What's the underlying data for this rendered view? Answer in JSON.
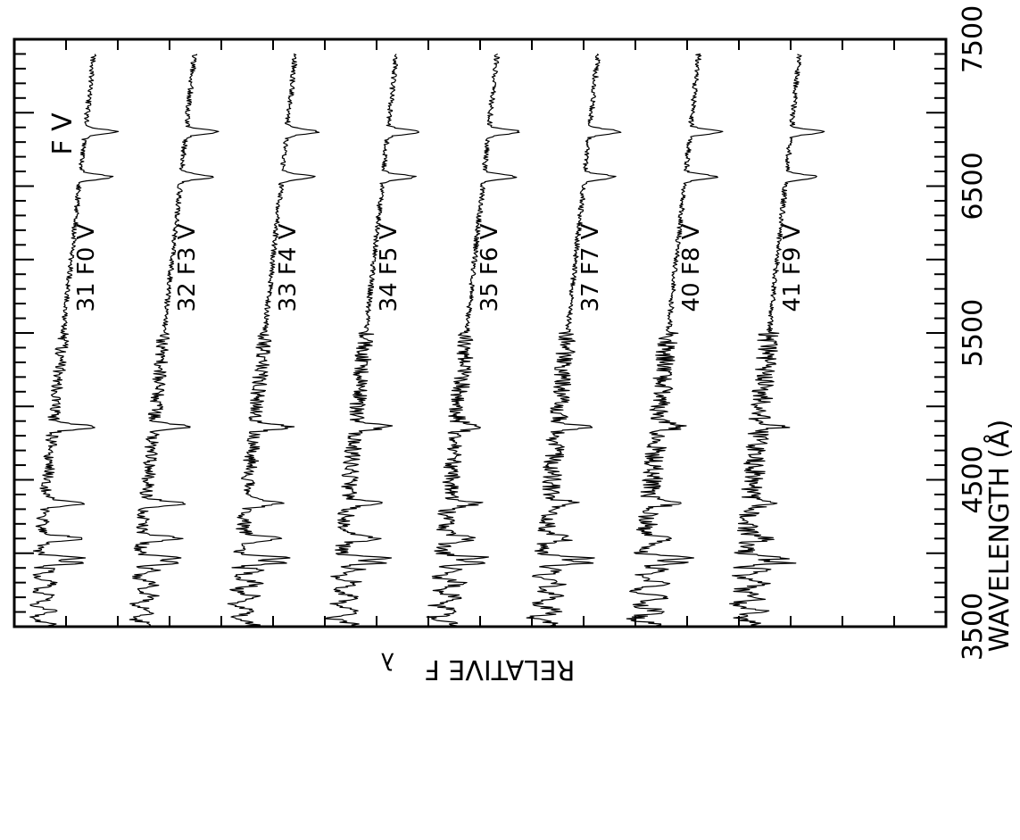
{
  "chart_data": {
    "type": "line",
    "title": "F V",
    "xlabel": "WAVELENGTH (Å)",
    "ylabel": "RELATIVE F",
    "ylabel_subscript": "λ",
    "xlim": [
      3500,
      7500
    ],
    "xticks": [
      3500,
      4500,
      5500,
      6500,
      7500
    ],
    "grid": false,
    "orientation": "rotated-90-clockwise",
    "spectral_lines_angstrom": [
      3934,
      3969,
      4101,
      4340,
      4861,
      6563,
      6870
    ],
    "series": [
      {
        "name": "31 F0 V",
        "offset": 0,
        "slope_continuum": [
          1.0,
          0.7,
          0.42
        ]
      },
      {
        "name": "32 F3 V",
        "offset": 1,
        "slope_continuum": [
          1.0,
          0.7,
          0.45
        ]
      },
      {
        "name": "33 F4 V",
        "offset": 2,
        "slope_continuum": [
          1.0,
          0.72,
          0.46
        ]
      },
      {
        "name": "34 F5 V",
        "offset": 3,
        "slope_continuum": [
          1.0,
          0.74,
          0.48
        ]
      },
      {
        "name": "35 F6 V",
        "offset": 4,
        "slope_continuum": [
          1.0,
          0.76,
          0.5
        ]
      },
      {
        "name": "37 F7 V",
        "offset": 5,
        "slope_continuum": [
          1.0,
          0.76,
          0.52
        ]
      },
      {
        "name": "40 F8 V",
        "offset": 6,
        "slope_continuum": [
          1.0,
          0.78,
          0.55
        ]
      },
      {
        "name": "41 F9 V",
        "offset": 7,
        "slope_continuum": [
          1.0,
          0.8,
          0.58
        ]
      }
    ]
  }
}
